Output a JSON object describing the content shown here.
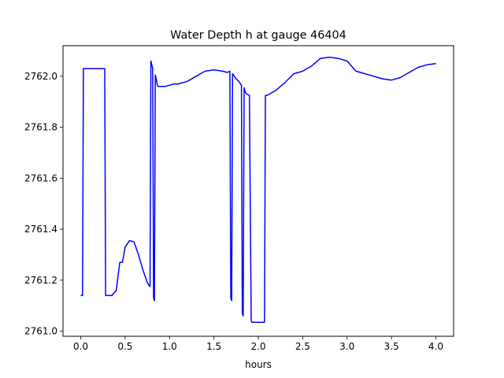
{
  "chart_data": {
    "type": "line",
    "title": "Water Depth h at gauge 46404",
    "xlabel": "hours",
    "ylabel": "",
    "xlim": [
      -0.2,
      4.2
    ],
    "ylim": [
      2760.98,
      2762.12
    ],
    "xticks": [
      0.0,
      0.5,
      1.0,
      1.5,
      2.0,
      2.5,
      3.0,
      3.5,
      4.0
    ],
    "xtick_labels": [
      "0.0",
      "0.5",
      "1.0",
      "1.5",
      "2.0",
      "2.5",
      "3.0",
      "3.5",
      "4.0"
    ],
    "yticks": [
      2761.0,
      2761.2,
      2761.4,
      2761.6,
      2761.8,
      2762.0
    ],
    "ytick_labels": [
      "2761.0",
      "2761.2",
      "2761.4",
      "2761.6",
      "2761.8",
      "2762.0"
    ],
    "grid": false,
    "color": "#0000ff",
    "series": [
      {
        "x": [
          0.0,
          0.02,
          0.03,
          0.1,
          0.2,
          0.27,
          0.28,
          0.35,
          0.4,
          0.44,
          0.45,
          0.47,
          0.5,
          0.55,
          0.6,
          0.65,
          0.7,
          0.75,
          0.78,
          0.79,
          0.81,
          0.82,
          0.83,
          0.84,
          0.85,
          0.86,
          0.87,
          0.9,
          0.95,
          1.0,
          1.05,
          1.1,
          1.2,
          1.3,
          1.4,
          1.5,
          1.6,
          1.65,
          1.68,
          1.69,
          1.7,
          1.71,
          1.72,
          1.75,
          1.78,
          1.8,
          1.81,
          1.82,
          1.83,
          1.84,
          1.85,
          1.87,
          1.9,
          1.92,
          1.93,
          1.95,
          1.99,
          2.05,
          2.07,
          2.08,
          2.1,
          2.15,
          2.2,
          2.3,
          2.4,
          2.5,
          2.6,
          2.7,
          2.8,
          2.9,
          3.0,
          3.1,
          3.2,
          3.3,
          3.4,
          3.5,
          3.6,
          3.7,
          3.8,
          3.9,
          4.0
        ],
        "y": [
          2761.14,
          2761.14,
          2762.03,
          2762.03,
          2762.03,
          2762.03,
          2761.14,
          2761.14,
          2761.16,
          2761.27,
          2761.27,
          2761.27,
          2761.33,
          2761.355,
          2761.35,
          2761.3,
          2761.24,
          2761.19,
          2761.175,
          2762.06,
          2762.03,
          2761.13,
          2761.12,
          2762.005,
          2761.99,
          2761.97,
          2761.96,
          2761.96,
          2761.96,
          2761.965,
          2761.97,
          2761.97,
          2761.98,
          2762.0,
          2762.02,
          2762.025,
          2762.02,
          2762.015,
          2762.02,
          2761.13,
          2761.12,
          2762.01,
          2762.005,
          2761.99,
          2761.98,
          2761.97,
          2761.965,
          2761.07,
          2761.06,
          2761.955,
          2761.94,
          2761.93,
          2761.925,
          2761.04,
          2761.035,
          2761.035,
          2761.035,
          2761.035,
          2761.035,
          2761.925,
          2761.925,
          2761.935,
          2761.945,
          2761.975,
          2762.01,
          2762.02,
          2762.04,
          2762.07,
          2762.075,
          2762.07,
          2762.06,
          2762.02,
          2762.01,
          2762.0,
          2761.99,
          2761.985,
          2761.995,
          2762.015,
          2762.035,
          2762.045,
          2762.05
        ]
      }
    ]
  }
}
